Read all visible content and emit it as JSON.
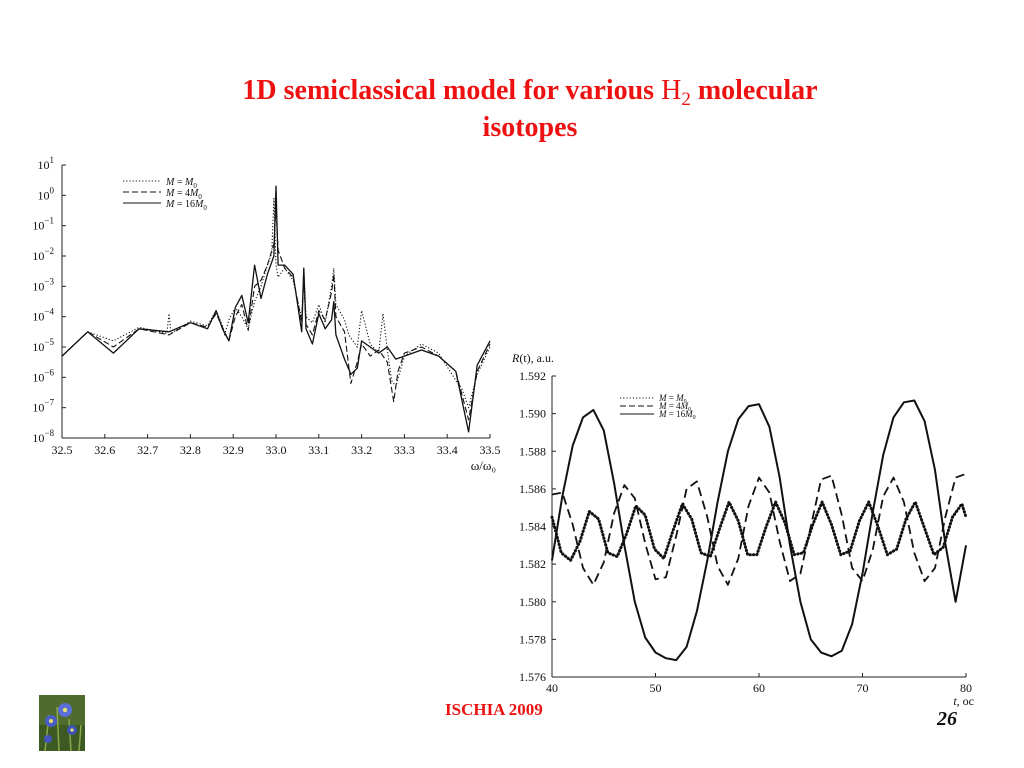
{
  "slide": {
    "title_prefix": "1D semiclassical model for various ",
    "title_molecule": "H",
    "title_subscript": "2",
    "title_suffix": " molecular",
    "title_line2": "isotopes",
    "footer": "ISCHIA 2009",
    "page_number": "26"
  },
  "chart_data": [
    {
      "type": "line",
      "name": "spectrum",
      "xlabel": "ω/ω₀",
      "ylabel": "",
      "xlim": [
        32.5,
        33.5
      ],
      "ylim_log10": [
        -8,
        1
      ],
      "yscale": "log",
      "xticks": [
        "32.5",
        "32.6",
        "32.7",
        "32.8",
        "32.9",
        "33.0",
        "33.1",
        "33.2",
        "33.3",
        "33.4",
        "33.5"
      ],
      "yticks": [
        {
          "base": "10",
          "exp": "1"
        },
        {
          "base": "10",
          "exp": "0"
        },
        {
          "base": "10",
          "exp": "−1"
        },
        {
          "base": "10",
          "exp": "−2"
        },
        {
          "base": "10",
          "exp": "−3"
        },
        {
          "base": "10",
          "exp": "−4"
        },
        {
          "base": "10",
          "exp": "−5"
        },
        {
          "base": "10",
          "exp": "−6"
        },
        {
          "base": "10",
          "exp": "−7"
        },
        {
          "base": "10",
          "exp": "−8"
        }
      ],
      "legend_position": "top-left",
      "series": [
        {
          "name": "M = M0",
          "label_lhs": "M",
          "label_eq": " = ",
          "label_rhs": "M",
          "label_sub": "0",
          "style": "dotted",
          "x": [
            32.5,
            32.56,
            32.62,
            32.68,
            32.745,
            32.75,
            32.755,
            32.8,
            32.84,
            32.86,
            32.875,
            32.88,
            32.89,
            32.905,
            32.92,
            32.935,
            32.95,
            32.965,
            32.98,
            32.99,
            32.995,
            33.0,
            33.005,
            33.02,
            33.04,
            33.06,
            33.065,
            33.07,
            33.085,
            33.1,
            33.115,
            33.13,
            33.135,
            33.14,
            33.16,
            33.17,
            33.19,
            33.2,
            33.22,
            33.24,
            33.25,
            33.26,
            33.27,
            33.28,
            33.3,
            33.34,
            33.38,
            33.42,
            33.435,
            33.45,
            33.47,
            33.5
          ],
          "log_y": [
            -5.3,
            -4.5,
            -4.8,
            -4.35,
            -4.55,
            -3.9,
            -4.55,
            -4.15,
            -4.3,
            -3.8,
            -4.3,
            -4.6,
            -4.1,
            -3.7,
            -4.0,
            -4.4,
            -3.5,
            -3.0,
            -2.3,
            -1.9,
            -0.1,
            -2.3,
            -2.7,
            -2.4,
            -2.8,
            -4.05,
            -2.4,
            -4.0,
            -4.2,
            -3.6,
            -4.2,
            -3.0,
            -2.4,
            -3.6,
            -4.1,
            -4.6,
            -5.0,
            -3.8,
            -4.9,
            -5.2,
            -3.9,
            -5.1,
            -6.1,
            -6.3,
            -5.3,
            -4.9,
            -5.2,
            -6.1,
            -6.4,
            -7.0,
            -5.9,
            -5.0
          ]
        },
        {
          "name": "M = 4M0",
          "label_lhs": "M",
          "label_eq": " = 4",
          "label_rhs": "M",
          "label_sub": "0",
          "style": "dashed",
          "x": [
            32.5,
            32.56,
            32.62,
            32.68,
            32.75,
            32.8,
            32.84,
            32.86,
            32.88,
            32.89,
            32.905,
            32.92,
            32.935,
            32.95,
            32.965,
            32.98,
            32.995,
            33.0,
            33.005,
            33.02,
            33.04,
            33.06,
            33.065,
            33.07,
            33.085,
            33.1,
            33.115,
            33.13,
            33.135,
            33.14,
            33.16,
            33.175,
            33.19,
            33.2,
            33.22,
            33.24,
            33.26,
            33.275,
            33.285,
            33.3,
            33.34,
            33.38,
            33.42,
            33.45,
            33.47,
            33.5
          ],
          "log_y": [
            -5.3,
            -4.5,
            -5.0,
            -4.4,
            -4.6,
            -4.2,
            -4.35,
            -3.9,
            -4.5,
            -4.8,
            -4.0,
            -3.6,
            -4.45,
            -3.0,
            -2.8,
            -2.3,
            -1.6,
            -0.4,
            -1.8,
            -2.4,
            -2.7,
            -4.2,
            -2.7,
            -4.25,
            -4.6,
            -3.8,
            -4.1,
            -3.2,
            -2.6,
            -4.0,
            -4.5,
            -6.2,
            -5.5,
            -4.9,
            -5.3,
            -5.1,
            -5.5,
            -6.8,
            -5.8,
            -5.2,
            -5.0,
            -5.3,
            -5.8,
            -7.4,
            -5.8,
            -4.9
          ]
        },
        {
          "name": "M = 16M0",
          "label_lhs": "M",
          "label_eq": " = 16",
          "label_rhs": "M",
          "label_sub": "0",
          "style": "solid",
          "x": [
            32.5,
            32.56,
            32.62,
            32.68,
            32.75,
            32.8,
            32.84,
            32.86,
            32.875,
            32.89,
            32.905,
            32.92,
            32.935,
            32.95,
            32.965,
            32.98,
            32.995,
            33.0,
            33.005,
            33.02,
            33.04,
            33.06,
            33.065,
            33.07,
            33.085,
            33.1,
            33.115,
            33.13,
            33.135,
            33.14,
            33.16,
            33.175,
            33.19,
            33.2,
            33.22,
            33.24,
            33.26,
            33.28,
            33.3,
            33.34,
            33.38,
            33.42,
            33.45,
            33.47,
            33.5
          ],
          "log_y": [
            -5.3,
            -4.5,
            -5.2,
            -4.4,
            -4.5,
            -4.2,
            -4.4,
            -3.8,
            -4.4,
            -4.8,
            -3.7,
            -3.3,
            -4.2,
            -2.3,
            -3.4,
            -2.6,
            -2.0,
            0.3,
            -2.3,
            -2.3,
            -2.6,
            -4.5,
            -2.4,
            -4.4,
            -4.9,
            -3.9,
            -4.4,
            -4.1,
            -3.5,
            -4.6,
            -5.4,
            -5.9,
            -5.7,
            -4.8,
            -5.0,
            -5.2,
            -5.0,
            -5.4,
            -5.3,
            -5.1,
            -5.3,
            -5.8,
            -7.8,
            -5.6,
            -4.8
          ]
        }
      ]
    },
    {
      "type": "line",
      "name": "bond-length",
      "title": "",
      "ylabel_lhs": "R",
      "ylabel_arg": "(t)",
      "ylabel_unit": ", a.u.",
      "xlabel_var": "t",
      "xlabel_unit": ", oc",
      "xlim": [
        40,
        80
      ],
      "ylim": [
        1.576,
        1.592
      ],
      "xticks": [
        "40",
        "50",
        "60",
        "70",
        "80"
      ],
      "yticks": [
        "1.576",
        "1.578",
        "1.580",
        "1.582",
        "1.584",
        "1.586",
        "1.588",
        "1.590",
        "1.592"
      ],
      "legend_position": "top-left",
      "series": [
        {
          "name": "M = M0",
          "label_lhs": "M",
          "label_eq": " = ",
          "label_rhs": "M",
          "label_sub": "0",
          "style": "dotted",
          "x": [
            40,
            40.9,
            41.8,
            42.7,
            43.6,
            44.5,
            45.4,
            46.3,
            47.2,
            48.1,
            49.0,
            49.9,
            50.8,
            51.7,
            52.6,
            53.5,
            54.4,
            55.3,
            56.2,
            57.1,
            58.0,
            58.9,
            59.8,
            60.7,
            61.6,
            62.5,
            63.4,
            64.3,
            65.2,
            66.1,
            67.0,
            67.9,
            68.8,
            69.7,
            70.6,
            71.5,
            72.4,
            73.3,
            74.2,
            75.1,
            76.0,
            76.9,
            77.8,
            78.7,
            79.6,
            80
          ],
          "y": [
            1.5845,
            1.5826,
            1.5822,
            1.5832,
            1.5848,
            1.5844,
            1.5826,
            1.5824,
            1.5836,
            1.5851,
            1.5846,
            1.5828,
            1.5823,
            1.5838,
            1.5852,
            1.5844,
            1.5826,
            1.5824,
            1.5839,
            1.5853,
            1.5843,
            1.5825,
            1.5825,
            1.584,
            1.5853,
            1.5842,
            1.5825,
            1.5826,
            1.5841,
            1.5853,
            1.5841,
            1.5825,
            1.5827,
            1.5843,
            1.5853,
            1.584,
            1.5825,
            1.5828,
            1.5844,
            1.5853,
            1.5839,
            1.5825,
            1.5829,
            1.5845,
            1.5852,
            1.5845
          ]
        },
        {
          "name": "M = 4M0",
          "label_lhs": "M",
          "label_eq": " = 4",
          "label_rhs": "M",
          "label_sub": "0",
          "style": "dashed",
          "x": [
            40,
            41,
            42,
            43,
            44,
            45,
            46,
            47,
            48,
            49,
            50,
            51,
            52,
            53,
            54,
            55,
            56,
            57,
            58,
            59,
            60,
            61,
            62,
            63,
            64,
            65,
            66,
            67,
            68,
            69,
            70,
            71,
            72,
            73,
            74,
            75,
            76,
            77,
            78,
            79,
            80
          ],
          "y": [
            1.5857,
            1.5858,
            1.5841,
            1.5818,
            1.5809,
            1.5821,
            1.5847,
            1.5862,
            1.5855,
            1.5831,
            1.5812,
            1.5813,
            1.5835,
            1.586,
            1.5864,
            1.5845,
            1.5819,
            1.5809,
            1.5823,
            1.5851,
            1.5866,
            1.5858,
            1.5832,
            1.5811,
            1.5815,
            1.584,
            1.5865,
            1.5867,
            1.5846,
            1.5818,
            1.5811,
            1.5828,
            1.5856,
            1.5866,
            1.5853,
            1.5826,
            1.5811,
            1.5818,
            1.5845,
            1.5866,
            1.5868
          ]
        },
        {
          "name": "M = 16M0",
          "label_lhs": "M",
          "label_eq": " = 16",
          "label_rhs": "M",
          "label_sub": "0",
          "style": "solid",
          "x": [
            40,
            41,
            42,
            43,
            44,
            45,
            46,
            47,
            48,
            49,
            50,
            51,
            52,
            53,
            54,
            55,
            56,
            57,
            58,
            59,
            60,
            61,
            62,
            63,
            64,
            65,
            66,
            67,
            68,
            69,
            70,
            71,
            72,
            73,
            74,
            75,
            76,
            77,
            78,
            79,
            80
          ],
          "y": [
            1.5822,
            1.5856,
            1.5883,
            1.5898,
            1.5902,
            1.5891,
            1.5863,
            1.583,
            1.58,
            1.5781,
            1.5773,
            1.577,
            1.5769,
            1.5776,
            1.5795,
            1.5822,
            1.5853,
            1.588,
            1.5897,
            1.5904,
            1.5905,
            1.5893,
            1.5866,
            1.583,
            1.58,
            1.578,
            1.5773,
            1.5771,
            1.5774,
            1.5788,
            1.5815,
            1.5848,
            1.5878,
            1.5898,
            1.5906,
            1.5907,
            1.5896,
            1.587,
            1.5831,
            1.58,
            1.583
          ]
        }
      ]
    }
  ]
}
